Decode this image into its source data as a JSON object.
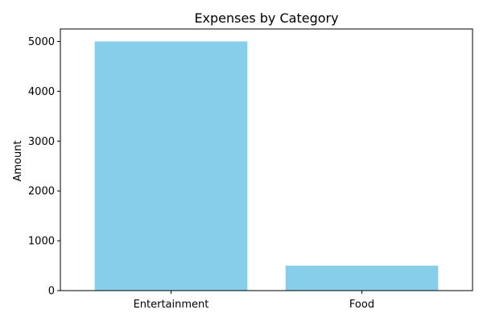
{
  "chart_data": {
    "type": "bar",
    "title": "Expenses by Category",
    "xlabel": "",
    "ylabel": "Amount",
    "categories": [
      "Entertainment",
      "Food"
    ],
    "values": [
      5000,
      500
    ],
    "ylim": [
      0,
      5250
    ],
    "yticks": [
      0,
      1000,
      2000,
      3000,
      4000,
      5000
    ],
    "bar_color": "#87ceeb",
    "grid": false,
    "legend": "none"
  }
}
